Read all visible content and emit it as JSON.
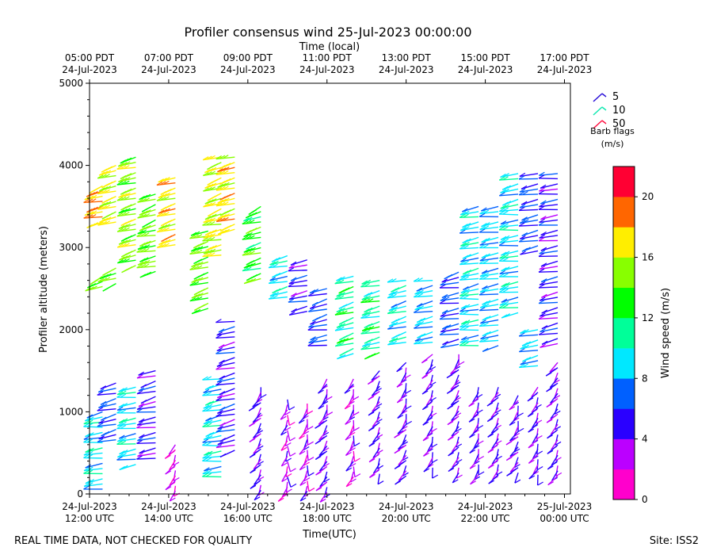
{
  "chart_data": {
    "type": "wind-barb-profile",
    "title": "Profiler consensus wind 25-Jul-2023 00:00:00",
    "top_axis_title": "Time (local)",
    "xlabel": "Time(UTC)",
    "ylabel": "Profiler altitude (meters)",
    "ylim": [
      0,
      5000
    ],
    "yticks": [
      0,
      1000,
      2000,
      3000,
      4000,
      5000
    ],
    "xlim_hours_utc": [
      12,
      24.15
    ],
    "bottom_ticks": [
      {
        "hour": 12,
        "date": "24-Jul-2023",
        "time": "12:00 UTC"
      },
      {
        "hour": 14,
        "date": "24-Jul-2023",
        "time": "14:00 UTC"
      },
      {
        "hour": 16,
        "date": "24-Jul-2023",
        "time": "16:00 UTC"
      },
      {
        "hour": 18,
        "date": "24-Jul-2023",
        "time": "18:00 UTC"
      },
      {
        "hour": 20,
        "date": "24-Jul-2023",
        "time": "20:00 UTC"
      },
      {
        "hour": 22,
        "date": "24-Jul-2023",
        "time": "22:00 UTC"
      },
      {
        "hour": 24,
        "date": "25-Jul-2023",
        "time": "00:00 UTC"
      }
    ],
    "top_ticks": [
      {
        "hour": 12,
        "time": "05:00 PDT",
        "date": "24-Jul-2023"
      },
      {
        "hour": 14,
        "time": "07:00 PDT",
        "date": "24-Jul-2023"
      },
      {
        "hour": 16,
        "time": "09:00 PDT",
        "date": "24-Jul-2023"
      },
      {
        "hour": 18,
        "time": "11:00 PDT",
        "date": "24-Jul-2023"
      },
      {
        "hour": 20,
        "time": "13:00 PDT",
        "date": "24-Jul-2023"
      },
      {
        "hour": 22,
        "time": "15:00 PDT",
        "date": "24-Jul-2023"
      },
      {
        "hour": 24,
        "time": "17:00 PDT",
        "date": "24-Jul-2023"
      }
    ],
    "barb_legend": {
      "title_line1": "Barb flags",
      "title_line2": "(m/s)",
      "items": [
        {
          "label": "5",
          "color": "#2a10d8"
        },
        {
          "label": "10",
          "color": "#10e8b0"
        },
        {
          "label": "50",
          "color": "#ff1040"
        }
      ]
    },
    "colorbar": {
      "label": "Wind speed (m/s)",
      "ticks": [
        0,
        4,
        8,
        12,
        16,
        20
      ],
      "range": [
        0,
        22
      ],
      "colors": [
        "#ff00cc",
        "#bb00ff",
        "#2a00ff",
        "#0060ff",
        "#00e8ff",
        "#00ff99",
        "#00ff00",
        "#88ff00",
        "#ffee00",
        "#ff6600",
        "#ff0033"
      ]
    },
    "columns": [
      {
        "hour": 12.33,
        "segments": [
          {
            "from": 0,
            "to": 1000,
            "speed": 9,
            "dir": 255
          },
          {
            "from": 2500,
            "to": 2650,
            "speed": 14,
            "dir": 240
          },
          {
            "from": 3250,
            "to": 3750,
            "speed": 18,
            "dir": 245
          }
        ]
      },
      {
        "hour": 12.67,
        "segments": [
          {
            "from": 600,
            "to": 1350,
            "speed": 6,
            "dir": 250
          },
          {
            "from": 2500,
            "to": 2750,
            "speed": 14,
            "dir": 240
          },
          {
            "from": 3250,
            "to": 4000,
            "speed": 16,
            "dir": 245
          }
        ]
      },
      {
        "hour": 13.17,
        "segments": [
          {
            "from": 300,
            "to": 1300,
            "speed": 9,
            "dir": 255
          },
          {
            "from": 2750,
            "to": 4100,
            "speed": 15,
            "dir": 245
          }
        ]
      },
      {
        "hour": 13.67,
        "segments": [
          {
            "from": 400,
            "to": 1500,
            "speed": 5,
            "dir": 250
          },
          {
            "from": 2700,
            "to": 3650,
            "speed": 14,
            "dir": 245
          }
        ]
      },
      {
        "hour": 14.17,
        "segments": [
          {
            "from": 0,
            "to": 600,
            "speed": 2,
            "dir": 200
          },
          {
            "from": 3000,
            "to": 3850,
            "speed": 17,
            "dir": 245
          }
        ]
      },
      {
        "hour": 15.0,
        "segments": [
          {
            "from": 2200,
            "to": 3200,
            "speed": 14,
            "dir": 240
          }
        ]
      },
      {
        "hour": 15.33,
        "segments": [
          {
            "from": 200,
            "to": 1400,
            "speed": 9,
            "dir": 255
          },
          {
            "from": 2900,
            "to": 4100,
            "speed": 16,
            "dir": 245
          }
        ]
      },
      {
        "hour": 15.67,
        "segments": [
          {
            "from": 500,
            "to": 2100,
            "speed": 5,
            "dir": 250
          },
          {
            "from": 3200,
            "to": 4100,
            "speed": 17,
            "dir": 245
          }
        ]
      },
      {
        "hour": 16.33,
        "segments": [
          {
            "from": 0,
            "to": 1300,
            "speed": 4,
            "dir": 200
          },
          {
            "from": 2600,
            "to": 3500,
            "speed": 13,
            "dir": 240
          }
        ]
      },
      {
        "hour": 17.0,
        "segments": [
          {
            "from": 0,
            "to": 1150,
            "speed": 3,
            "dir": 190
          },
          {
            "from": 2350,
            "to": 2900,
            "speed": 9,
            "dir": 250
          }
        ]
      },
      {
        "hour": 17.5,
        "segments": [
          {
            "from": 0,
            "to": 1100,
            "speed": 3,
            "dir": 190
          },
          {
            "from": 2200,
            "to": 2850,
            "speed": 5,
            "dir": 250
          }
        ]
      },
      {
        "hour": 18.0,
        "segments": [
          {
            "from": 0,
            "to": 1400,
            "speed": 4,
            "dir": 200
          },
          {
            "from": 1800,
            "to": 2500,
            "speed": 6,
            "dir": 250
          }
        ]
      },
      {
        "hour": 18.67,
        "segments": [
          {
            "from": 200,
            "to": 1400,
            "speed": 3,
            "dir": 195
          },
          {
            "from": 1700,
            "to": 2650,
            "speed": 11,
            "dir": 245
          }
        ]
      },
      {
        "hour": 19.33,
        "segments": [
          {
            "from": 200,
            "to": 1500,
            "speed": 4,
            "dir": 200
          },
          {
            "from": 1700,
            "to": 2600,
            "speed": 11,
            "dir": 245
          }
        ]
      },
      {
        "hour": 20.0,
        "segments": [
          {
            "from": 200,
            "to": 1600,
            "speed": 4,
            "dir": 200
          },
          {
            "from": 1800,
            "to": 2600,
            "speed": 9,
            "dir": 250
          }
        ]
      },
      {
        "hour": 20.67,
        "segments": [
          {
            "from": 300,
            "to": 1700,
            "speed": 4,
            "dir": 200
          },
          {
            "from": 1800,
            "to": 2600,
            "speed": 8,
            "dir": 250
          }
        ]
      },
      {
        "hour": 21.33,
        "segments": [
          {
            "from": 200,
            "to": 1700,
            "speed": 4,
            "dir": 200
          },
          {
            "from": 1800,
            "to": 2700,
            "speed": 6,
            "dir": 250
          }
        ]
      },
      {
        "hour": 21.83,
        "segments": [
          {
            "from": 200,
            "to": 1300,
            "speed": 4,
            "dir": 200
          },
          {
            "from": 1800,
            "to": 3500,
            "speed": 9,
            "dir": 255
          }
        ]
      },
      {
        "hour": 22.33,
        "segments": [
          {
            "from": 200,
            "to": 1300,
            "speed": 4,
            "dir": 200
          },
          {
            "from": 1800,
            "to": 3500,
            "speed": 8,
            "dir": 255
          }
        ]
      },
      {
        "hour": 22.83,
        "segments": [
          {
            "from": 200,
            "to": 1200,
            "speed": 4,
            "dir": 200
          },
          {
            "from": 2200,
            "to": 3900,
            "speed": 9,
            "dir": 255
          }
        ]
      },
      {
        "hour": 23.33,
        "segments": [
          {
            "from": 200,
            "to": 1300,
            "speed": 4,
            "dir": 200
          },
          {
            "from": 1500,
            "to": 2000,
            "speed": 8,
            "dir": 250
          },
          {
            "from": 2900,
            "to": 3900,
            "speed": 6,
            "dir": 255
          }
        ]
      },
      {
        "hour": 23.83,
        "segments": [
          {
            "from": 200,
            "to": 1600,
            "speed": 4,
            "dir": 200
          },
          {
            "from": 1800,
            "to": 3900,
            "speed": 5,
            "dir": 255
          }
        ]
      }
    ]
  },
  "footer": {
    "disclaimer": "REAL TIME DATA, NOT CHECKED FOR QUALITY",
    "site": "Site: ISS2"
  }
}
